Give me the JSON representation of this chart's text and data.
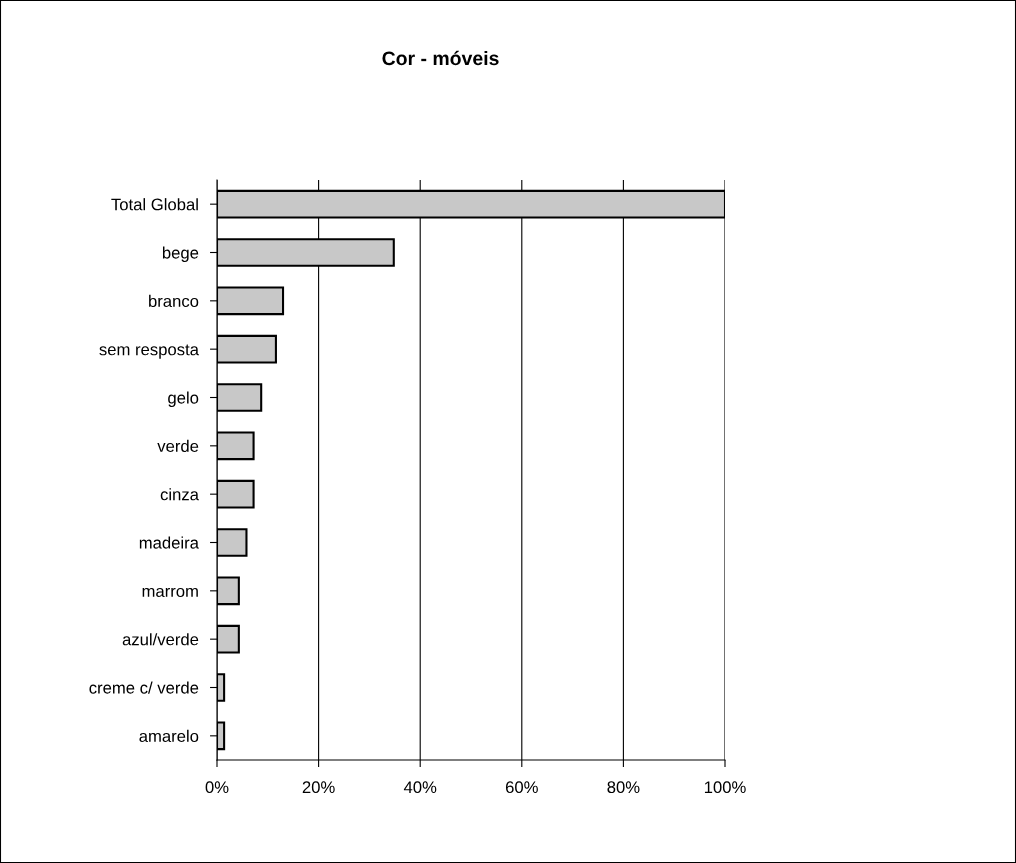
{
  "chart_data": {
    "type": "bar",
    "orientation": "horizontal",
    "title": "Cor - móveis",
    "categories": [
      "Total Global",
      "bege",
      "branco",
      "sem resposta",
      "gelo",
      "verde",
      "cinza",
      "madeira",
      "marrom",
      "azul/verde",
      "creme c/ verde",
      "amarelo"
    ],
    "values": [
      100,
      34.8,
      13.0,
      11.6,
      8.7,
      7.2,
      7.2,
      5.8,
      4.3,
      4.3,
      1.4,
      1.4
    ],
    "color": "#c8c8c8",
    "xlim": [
      0,
      100
    ],
    "xticks": [
      {
        "value": 0,
        "label": "0%"
      },
      {
        "value": 20,
        "label": "20%"
      },
      {
        "value": 40,
        "label": "40%"
      },
      {
        "value": 60,
        "label": "60%"
      },
      {
        "value": 80,
        "label": "80%"
      },
      {
        "value": 100,
        "label": "100%"
      }
    ],
    "grid": "x"
  }
}
